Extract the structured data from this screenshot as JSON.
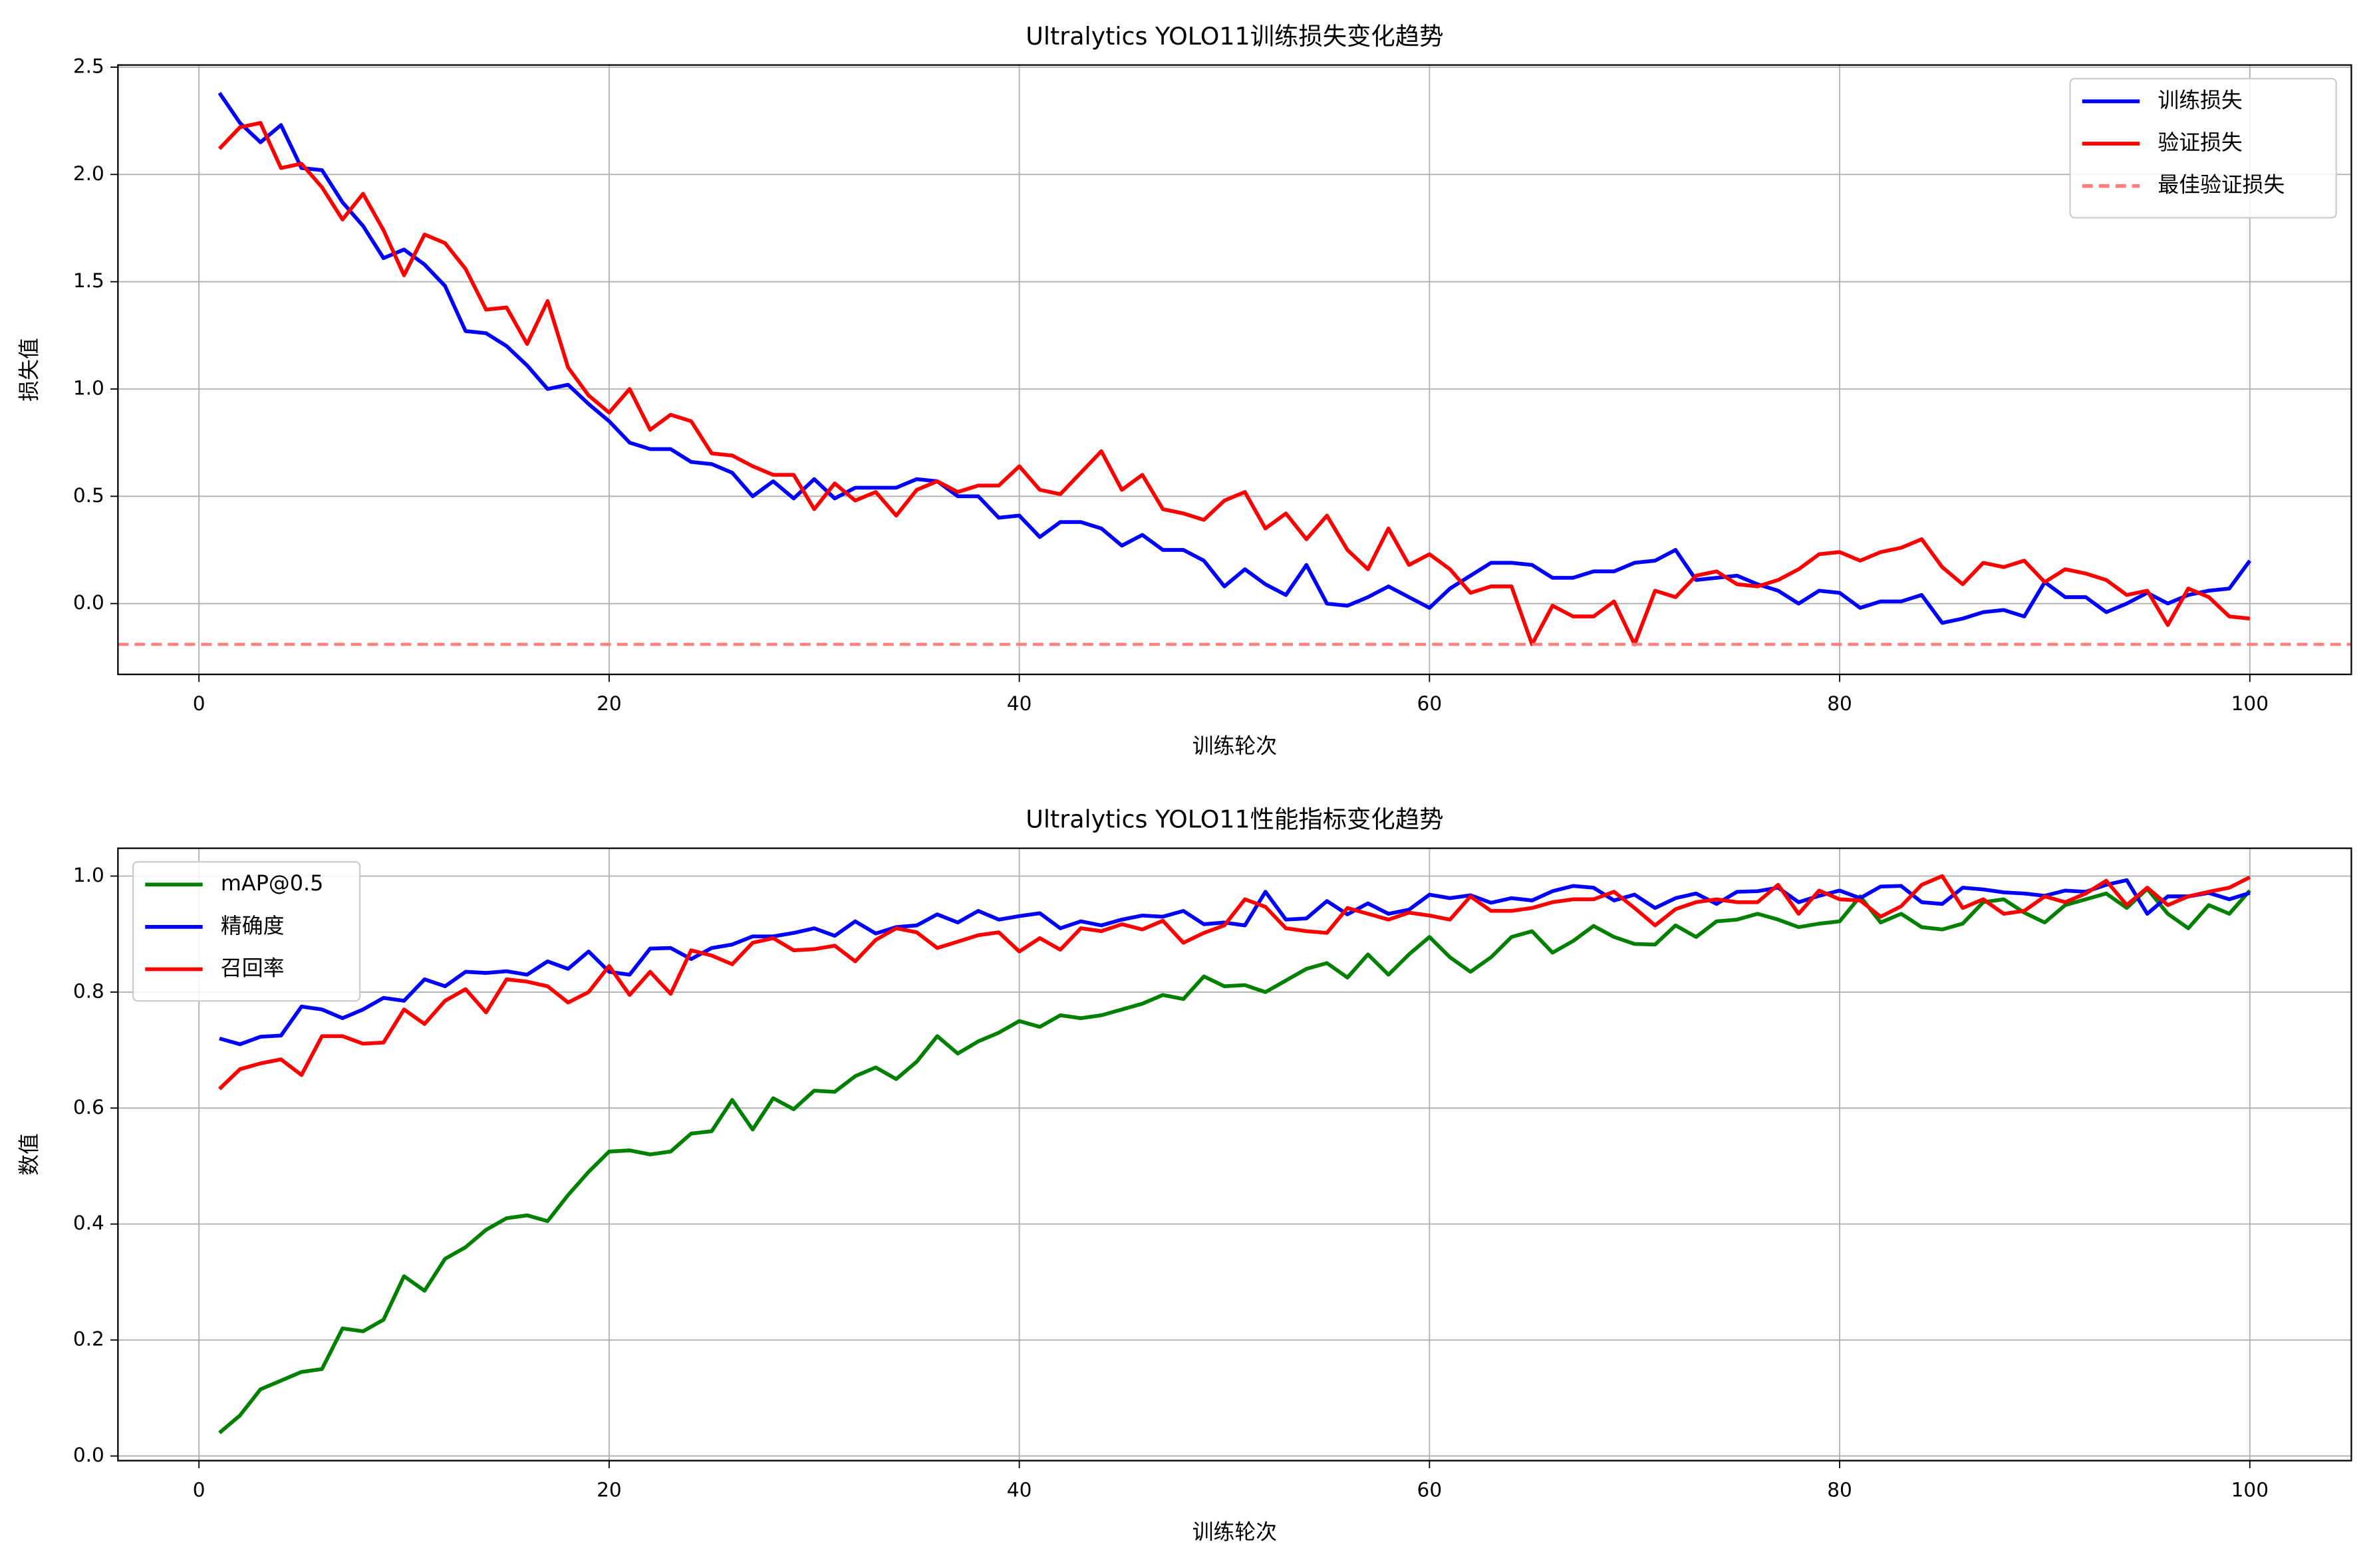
{
  "chart_data": [
    {
      "type": "line",
      "title": "Ultralytics YOLO11训练损失变化趋势",
      "xlabel": "训练轮次",
      "ylabel": "损失值",
      "x": [
        1,
        2,
        3,
        4,
        5,
        6,
        7,
        8,
        9,
        10,
        11,
        12,
        13,
        14,
        15,
        16,
        17,
        18,
        19,
        20,
        21,
        22,
        23,
        24,
        25,
        26,
        27,
        28,
        29,
        30,
        31,
        32,
        33,
        34,
        35,
        36,
        37,
        38,
        39,
        40,
        41,
        42,
        43,
        44,
        45,
        46,
        47,
        48,
        49,
        50,
        51,
        52,
        53,
        54,
        55,
        56,
        57,
        58,
        59,
        60,
        61,
        62,
        63,
        64,
        65,
        66,
        67,
        68,
        69,
        70,
        71,
        72,
        73,
        74,
        75,
        76,
        77,
        78,
        79,
        80,
        81,
        82,
        83,
        84,
        85,
        86,
        87,
        88,
        89,
        90,
        91,
        92,
        93,
        94,
        95,
        96,
        97,
        98,
        99,
        100
      ],
      "series": [
        {
          "name": "训练损失",
          "color": "#0000ff",
          "values": [
            2.38,
            2.24,
            2.15,
            2.23,
            2.03,
            2.02,
            1.87,
            1.76,
            1.61,
            1.65,
            1.58,
            1.48,
            1.27,
            1.26,
            1.2,
            1.11,
            1.0,
            1.02,
            0.93,
            0.85,
            0.75,
            0.72,
            0.72,
            0.66,
            0.65,
            0.61,
            0.5,
            0.57,
            0.49,
            0.58,
            0.49,
            0.54,
            0.54,
            0.54,
            0.58,
            0.57,
            0.5,
            0.5,
            0.4,
            0.41,
            0.31,
            0.38,
            0.38,
            0.35,
            0.27,
            0.32,
            0.25,
            0.25,
            0.2,
            0.08,
            0.16,
            0.09,
            0.04,
            0.18,
            0.0,
            -0.01,
            0.03,
            0.08,
            0.03,
            -0.02,
            0.07,
            0.13,
            0.19,
            0.19,
            0.18,
            0.12,
            0.12,
            0.15,
            0.15,
            0.19,
            0.2,
            0.25,
            0.11,
            0.12,
            0.13,
            0.09,
            0.06,
            0.0,
            0.06,
            0.05,
            -0.02,
            0.01,
            0.01,
            0.04,
            -0.09,
            -0.07,
            -0.04,
            -0.03,
            -0.06,
            0.1,
            0.03,
            0.03,
            -0.04,
            0.0,
            0.05,
            0.0,
            0.04,
            0.06,
            0.07,
            0.2
          ]
        },
        {
          "name": "验证损失",
          "color": "#ff0000",
          "values": [
            2.12,
            2.22,
            2.24,
            2.03,
            2.05,
            1.94,
            1.79,
            1.91,
            1.74,
            1.53,
            1.72,
            1.68,
            1.56,
            1.37,
            1.38,
            1.21,
            1.41,
            1.1,
            0.97,
            0.89,
            1.0,
            0.81,
            0.88,
            0.85,
            0.7,
            0.69,
            0.64,
            0.6,
            0.6,
            0.44,
            0.56,
            0.48,
            0.52,
            0.41,
            0.53,
            0.57,
            0.52,
            0.55,
            0.55,
            0.64,
            0.53,
            0.51,
            0.61,
            0.71,
            0.53,
            0.6,
            0.44,
            0.42,
            0.39,
            0.48,
            0.52,
            0.35,
            0.42,
            0.3,
            0.41,
            0.25,
            0.16,
            0.35,
            0.18,
            0.23,
            0.16,
            0.05,
            0.08,
            0.08,
            -0.19,
            -0.01,
            -0.06,
            -0.06,
            0.01,
            -0.19,
            0.06,
            0.03,
            0.13,
            0.15,
            0.09,
            0.08,
            0.11,
            0.16,
            0.23,
            0.24,
            0.2,
            0.24,
            0.26,
            0.3,
            0.17,
            0.09,
            0.19,
            0.17,
            0.2,
            0.1,
            0.16,
            0.14,
            0.11,
            0.04,
            0.06,
            -0.1,
            0.07,
            0.03,
            -0.06,
            -0.07
          ]
        }
      ],
      "reference_lines": [
        {
          "name": "最佳验证损失",
          "color": "#ff7f7f",
          "value": -0.19
        }
      ],
      "xlim": [
        -3.95,
        104.95
      ],
      "ylim": [
        -0.33,
        2.51
      ],
      "xticks": [
        0,
        20,
        40,
        60,
        80,
        100
      ],
      "yticks": [
        {
          "value": 0,
          "label": "0.0"
        },
        0.5,
        {
          "value": 1,
          "label": "1.0"
        },
        1.5,
        {
          "value": 2,
          "label": "2.0"
        },
        2.5
      ],
      "grid": true,
      "legend": "upper right"
    },
    {
      "type": "line",
      "title": "Ultralytics YOLO11性能指标变化趋势",
      "xlabel": "训练轮次",
      "ylabel": "数值",
      "x": [
        1,
        2,
        3,
        4,
        5,
        6,
        7,
        8,
        9,
        10,
        11,
        12,
        13,
        14,
        15,
        16,
        17,
        18,
        19,
        20,
        21,
        22,
        23,
        24,
        25,
        26,
        27,
        28,
        29,
        30,
        31,
        32,
        33,
        34,
        35,
        36,
        37,
        38,
        39,
        40,
        41,
        42,
        43,
        44,
        45,
        46,
        47,
        48,
        49,
        50,
        51,
        52,
        53,
        54,
        55,
        56,
        57,
        58,
        59,
        60,
        61,
        62,
        63,
        64,
        65,
        66,
        67,
        68,
        69,
        70,
        71,
        72,
        73,
        74,
        75,
        76,
        77,
        78,
        79,
        80,
        81,
        82,
        83,
        84,
        85,
        86,
        87,
        88,
        89,
        90,
        91,
        92,
        93,
        94,
        95,
        96,
        97,
        98,
        99,
        100
      ],
      "series": [
        {
          "name": "mAP@0.5",
          "color": "#008000",
          "values": [
            0.04,
            0.07,
            0.115,
            0.13,
            0.145,
            0.15,
            0.22,
            0.215,
            0.235,
            0.31,
            0.285,
            0.34,
            0.36,
            0.39,
            0.41,
            0.415,
            0.405,
            0.45,
            0.49,
            0.525,
            0.527,
            0.52,
            0.525,
            0.556,
            0.56,
            0.614,
            0.563,
            0.617,
            0.598,
            0.63,
            0.628,
            0.655,
            0.67,
            0.65,
            0.68,
            0.724,
            0.694,
            0.715,
            0.73,
            0.75,
            0.74,
            0.76,
            0.755,
            0.76,
            0.77,
            0.78,
            0.795,
            0.788,
            0.827,
            0.81,
            0.812,
            0.8,
            0.82,
            0.84,
            0.85,
            0.825,
            0.865,
            0.83,
            0.865,
            0.895,
            0.86,
            0.835,
            0.86,
            0.895,
            0.905,
            0.868,
            0.888,
            0.914,
            0.895,
            0.883,
            0.882,
            0.915,
            0.895,
            0.922,
            0.925,
            0.935,
            0.925,
            0.912,
            0.918,
            0.922,
            0.965,
            0.92,
            0.935,
            0.912,
            0.908,
            0.918,
            0.955,
            0.96,
            0.937,
            0.92,
            0.95,
            0.96,
            0.97,
            0.945,
            0.978,
            0.935,
            0.91,
            0.95,
            0.935,
            0.975
          ]
        },
        {
          "name": "精确度",
          "color": "#0000ff",
          "values": [
            0.72,
            0.71,
            0.723,
            0.725,
            0.775,
            0.77,
            0.755,
            0.77,
            0.79,
            0.785,
            0.822,
            0.81,
            0.835,
            0.833,
            0.836,
            0.83,
            0.853,
            0.84,
            0.87,
            0.835,
            0.83,
            0.875,
            0.876,
            0.857,
            0.876,
            0.882,
            0.896,
            0.896,
            0.902,
            0.91,
            0.897,
            0.922,
            0.901,
            0.912,
            0.915,
            0.934,
            0.92,
            0.94,
            0.925,
            0.931,
            0.936,
            0.91,
            0.922,
            0.915,
            0.925,
            0.932,
            0.93,
            0.94,
            0.917,
            0.92,
            0.915,
            0.973,
            0.925,
            0.927,
            0.957,
            0.934,
            0.953,
            0.935,
            0.942,
            0.968,
            0.962,
            0.967,
            0.954,
            0.962,
            0.958,
            0.974,
            0.983,
            0.98,
            0.958,
            0.968,
            0.945,
            0.962,
            0.97,
            0.952,
            0.973,
            0.974,
            0.98,
            0.955,
            0.966,
            0.975,
            0.962,
            0.982,
            0.983,
            0.955,
            0.952,
            0.98,
            0.977,
            0.972,
            0.97,
            0.966,
            0.975,
            0.973,
            0.985,
            0.993,
            0.935,
            0.965,
            0.965,
            0.971,
            0.96,
            0.971
          ]
        },
        {
          "name": "召回率",
          "color": "#ff0000",
          "values": [
            0.633,
            0.667,
            0.677,
            0.684,
            0.657,
            0.724,
            0.724,
            0.711,
            0.713,
            0.77,
            0.745,
            0.785,
            0.805,
            0.765,
            0.822,
            0.818,
            0.81,
            0.782,
            0.8,
            0.845,
            0.795,
            0.835,
            0.797,
            0.872,
            0.863,
            0.848,
            0.885,
            0.893,
            0.872,
            0.874,
            0.88,
            0.853,
            0.89,
            0.91,
            0.903,
            0.876,
            0.887,
            0.898,
            0.903,
            0.87,
            0.893,
            0.873,
            0.91,
            0.905,
            0.917,
            0.908,
            0.923,
            0.885,
            0.902,
            0.915,
            0.96,
            0.947,
            0.91,
            0.905,
            0.902,
            0.945,
            0.935,
            0.925,
            0.937,
            0.932,
            0.925,
            0.965,
            0.94,
            0.94,
            0.945,
            0.955,
            0.96,
            0.96,
            0.973,
            0.945,
            0.915,
            0.943,
            0.955,
            0.96,
            0.955,
            0.955,
            0.985,
            0.935,
            0.975,
            0.96,
            0.958,
            0.93,
            0.948,
            0.985,
            1.0,
            0.945,
            0.96,
            0.935,
            0.94,
            0.965,
            0.955,
            0.97,
            0.992,
            0.95,
            0.98,
            0.95,
            0.965,
            0.973,
            0.98,
            0.998
          ]
        }
      ],
      "xlim": [
        -3.95,
        104.95
      ],
      "ylim": [
        -0.008,
        1.048
      ],
      "xticks": [
        0,
        20,
        40,
        60,
        80,
        100
      ],
      "yticks": [
        {
          "value": 0,
          "label": "0.0"
        },
        0.2,
        0.4,
        0.6,
        0.8,
        {
          "value": 1,
          "label": "1.0"
        }
      ],
      "grid": true,
      "legend": "upper left"
    }
  ]
}
